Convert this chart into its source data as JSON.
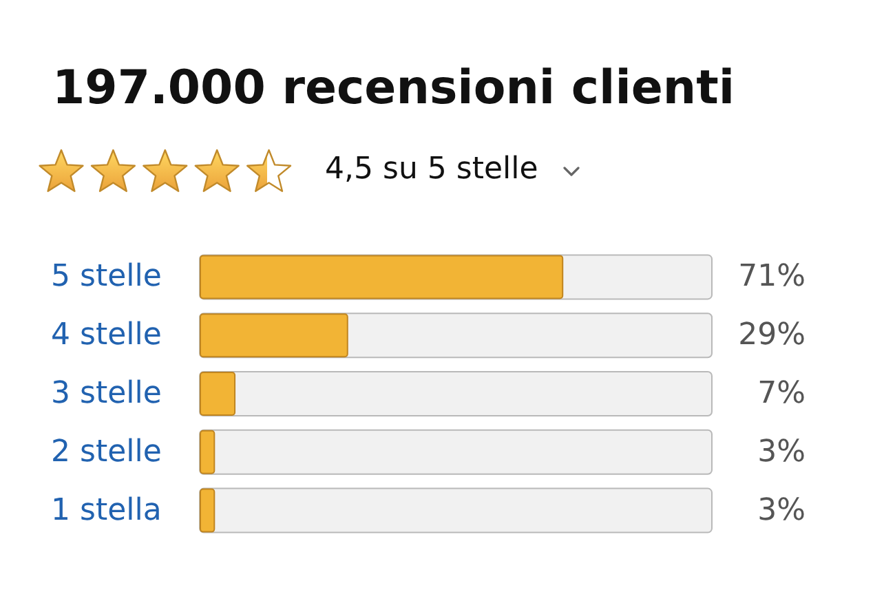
{
  "chart_data": {
    "type": "bar",
    "orientation": "horizontal",
    "title": "197.000 recensioni clienti",
    "annotations": [
      "4,5 su 5 stelle"
    ],
    "categories": [
      "5 stelle",
      "4 stelle",
      "3 stelle",
      "2 stelle",
      "1 stella"
    ],
    "values": [
      71,
      29,
      7,
      3,
      3
    ],
    "value_labels": [
      "71%",
      "29%",
      "7%",
      "3%",
      "3%"
    ],
    "color": "#f2b435",
    "xlim": [
      0,
      100
    ],
    "tick_labels": "y"
  }
}
